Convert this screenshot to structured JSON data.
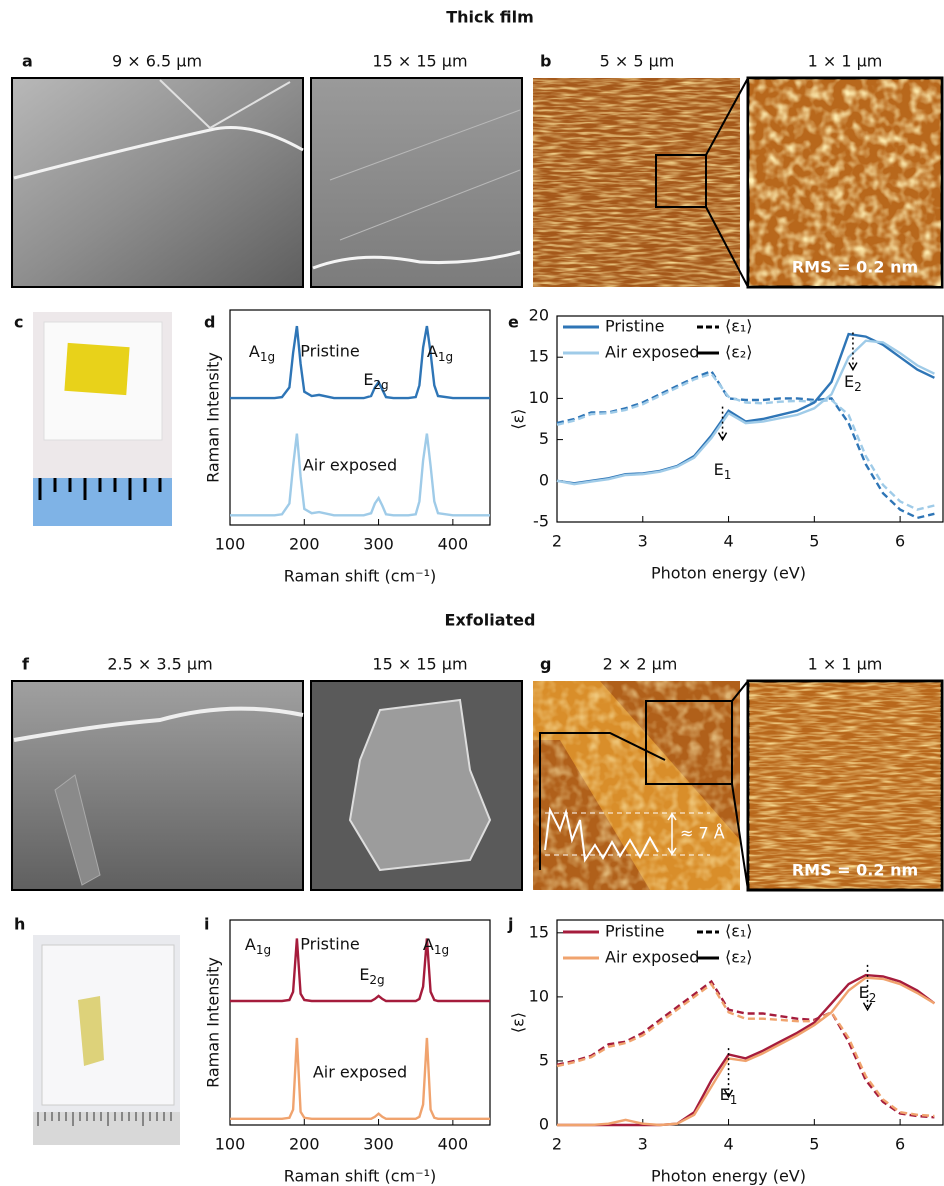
{
  "headings": [
    "Thick film",
    "Exfoliated"
  ],
  "panel_labels": [
    "a",
    "b",
    "c",
    "d",
    "e",
    "f",
    "g",
    "h",
    "i",
    "j"
  ],
  "image_labels": [
    "9 × 6.5 μm",
    "15 × 15 μm",
    "5 × 5 μm",
    "1 × 1 μm",
    "2.5 × 3.5 μm",
    "15 × 15 μm",
    "2 × 2 μm",
    "1 × 1 μm"
  ],
  "rms_labels": [
    "RMS = 0.2 nm",
    "RMS = 0.2 nm"
  ],
  "step_label": "≈ 7 Å",
  "chart_data": [
    {
      "type": "line",
      "xlabel": "Raman shift (cm⁻¹)",
      "ylabel": "Raman Intensity",
      "x": [
        100,
        120,
        140,
        160,
        170,
        180,
        185,
        190,
        195,
        200,
        210,
        220,
        240,
        260,
        280,
        290,
        295,
        300,
        305,
        310,
        320,
        340,
        350,
        355,
        360,
        365,
        370,
        375,
        380,
        400,
        420,
        440,
        450
      ],
      "xlim": [
        100,
        450
      ],
      "xticks": [
        100,
        200,
        300,
        400
      ],
      "ylim": [
        0,
        2
      ],
      "series": [
        {
          "name": "Pristine",
          "color": "#2e75b6",
          "values": [
            1.18,
            1.18,
            1.18,
            1.18,
            1.19,
            1.28,
            1.6,
            1.85,
            1.5,
            1.24,
            1.2,
            1.21,
            1.18,
            1.18,
            1.18,
            1.2,
            1.28,
            1.33,
            1.26,
            1.19,
            1.18,
            1.18,
            1.19,
            1.3,
            1.65,
            1.85,
            1.6,
            1.3,
            1.2,
            1.18,
            1.18,
            1.18,
            1.18
          ]
        },
        {
          "name": "Air exposed",
          "color": "#9fcbe8",
          "values": [
            0.09,
            0.09,
            0.09,
            0.09,
            0.1,
            0.2,
            0.55,
            0.85,
            0.45,
            0.15,
            0.11,
            0.12,
            0.09,
            0.09,
            0.09,
            0.11,
            0.2,
            0.25,
            0.18,
            0.1,
            0.09,
            0.09,
            0.1,
            0.22,
            0.6,
            0.85,
            0.55,
            0.22,
            0.11,
            0.09,
            0.09,
            0.09,
            0.09
          ]
        }
      ],
      "annotations": [
        {
          "text": "A",
          "sub": "1g"
        },
        {
          "text": "E",
          "sub": "2g"
        },
        {
          "text": "A",
          "sub": "1g"
        }
      ]
    },
    {
      "type": "ellipsometry",
      "xlabel": "Photon energy (eV)",
      "ylabel": "⟨ε⟩",
      "x": [
        2.0,
        2.2,
        2.4,
        2.6,
        2.8,
        3.0,
        3.2,
        3.4,
        3.6,
        3.8,
        4.0,
        4.2,
        4.4,
        4.6,
        4.8,
        5.0,
        5.2,
        5.4,
        5.6,
        5.8,
        6.0,
        6.2,
        6.4
      ],
      "xlim": [
        2,
        6.5
      ],
      "xticks": [
        2,
        3,
        4,
        5,
        6
      ],
      "ylim": [
        -5,
        20
      ],
      "yticks": [
        -5,
        0,
        5,
        10,
        15,
        20
      ],
      "legend": {
        "samples": [
          {
            "name": "Pristine",
            "color": "#2e75b6"
          },
          {
            "name": "Air exposed",
            "color": "#9fcbe8"
          }
        ],
        "components": [
          {
            "name": "⟨ε₁⟩",
            "dashed": true
          },
          {
            "name": "⟨ε₂⟩",
            "dashed": false
          }
        ]
      },
      "series": [
        {
          "color": "#2e75b6",
          "dashed": true,
          "values": [
            7,
            7.5,
            8.3,
            8.3,
            8.8,
            9.5,
            10.5,
            11.5,
            12.5,
            13.3,
            10,
            9.8,
            9.8,
            10,
            10,
            9.8,
            10,
            7,
            2,
            -1.5,
            -3.5,
            -4.5,
            -4
          ]
        },
        {
          "color": "#9fcbe8",
          "dashed": true,
          "values": [
            6.8,
            7.3,
            8.1,
            8.2,
            8.6,
            9.3,
            10.3,
            11.3,
            12.3,
            13,
            10.2,
            9.5,
            9.4,
            9.6,
            9.7,
            9.6,
            9.8,
            8,
            3,
            -0.5,
            -2.5,
            -3.5,
            -3
          ]
        },
        {
          "color": "#2e75b6",
          "dashed": false,
          "values": [
            0,
            -0.3,
            0,
            0.3,
            0.8,
            0.9,
            1.2,
            1.8,
            3,
            5.5,
            8.5,
            7.2,
            7.5,
            8,
            8.5,
            9.5,
            12,
            17.8,
            17.5,
            16.5,
            15,
            13.5,
            12.5
          ]
        },
        {
          "color": "#9fcbe8",
          "dashed": false,
          "values": [
            0,
            -0.4,
            -0.1,
            0.2,
            0.7,
            0.8,
            1.1,
            1.7,
            2.8,
            5.2,
            8.2,
            7,
            7.2,
            7.6,
            8,
            8.8,
            10.5,
            15,
            17,
            16.8,
            15.5,
            14,
            13
          ]
        }
      ],
      "annotations": [
        {
          "text": "E",
          "sub": "1"
        },
        {
          "text": "E",
          "sub": "2"
        }
      ]
    },
    {
      "type": "line",
      "xlabel": "Raman shift (cm⁻¹)",
      "ylabel": "Raman Intensity",
      "x": [
        100,
        120,
        140,
        160,
        170,
        180,
        185,
        190,
        195,
        200,
        210,
        220,
        240,
        260,
        280,
        290,
        295,
        300,
        305,
        310,
        320,
        340,
        350,
        355,
        360,
        365,
        370,
        375,
        380,
        400,
        420,
        440,
        450
      ],
      "xlim": [
        100,
        450
      ],
      "xticks": [
        100,
        200,
        300,
        400
      ],
      "ylim": [
        0,
        2
      ],
      "series": [
        {
          "name": "Pristine",
          "color": "#a51c3c",
          "values": [
            1.21,
            1.21,
            1.21,
            1.21,
            1.21,
            1.22,
            1.3,
            1.82,
            1.28,
            1.22,
            1.21,
            1.21,
            1.21,
            1.21,
            1.21,
            1.21,
            1.23,
            1.26,
            1.23,
            1.21,
            1.21,
            1.21,
            1.21,
            1.23,
            1.35,
            1.82,
            1.3,
            1.22,
            1.21,
            1.21,
            1.21,
            1.21,
            1.21
          ]
        },
        {
          "name": "Air exposed",
          "color": "#f0a36e",
          "values": [
            0.06,
            0.06,
            0.06,
            0.06,
            0.06,
            0.07,
            0.15,
            0.85,
            0.13,
            0.07,
            0.06,
            0.06,
            0.06,
            0.06,
            0.06,
            0.06,
            0.08,
            0.11,
            0.08,
            0.06,
            0.06,
            0.06,
            0.06,
            0.08,
            0.2,
            0.85,
            0.15,
            0.07,
            0.06,
            0.06,
            0.06,
            0.06,
            0.06
          ]
        }
      ],
      "annotations": [
        {
          "text": "A",
          "sub": "1g"
        },
        {
          "text": "E",
          "sub": "2g"
        },
        {
          "text": "A",
          "sub": "1g"
        }
      ]
    },
    {
      "type": "ellipsometry",
      "xlabel": "Photon energy (eV)",
      "ylabel": "⟨ε⟩",
      "x": [
        2.0,
        2.2,
        2.4,
        2.6,
        2.8,
        3.0,
        3.2,
        3.4,
        3.6,
        3.8,
        4.0,
        4.2,
        4.4,
        4.6,
        4.8,
        5.0,
        5.2,
        5.4,
        5.6,
        5.8,
        6.0,
        6.2,
        6.4
      ],
      "xlim": [
        2,
        6.5
      ],
      "xticks": [
        2,
        3,
        4,
        5,
        6
      ],
      "ylim": [
        0,
        16
      ],
      "yticks": [
        0,
        5,
        10,
        15
      ],
      "legend": {
        "samples": [
          {
            "name": "Pristine",
            "color": "#a51c3c"
          },
          {
            "name": "Air exposed",
            "color": "#f0a36e"
          }
        ],
        "components": [
          {
            "name": "⟨ε₁⟩",
            "dashed": true
          },
          {
            "name": "⟨ε₂⟩",
            "dashed": false
          }
        ]
      },
      "series": [
        {
          "color": "#a51c3c",
          "dashed": true,
          "values": [
            4.7,
            5,
            5.4,
            6.3,
            6.5,
            7.2,
            8.2,
            9.2,
            10.2,
            11.2,
            9,
            8.7,
            8.7,
            8.5,
            8.3,
            8.2,
            8.8,
            6.5,
            3.5,
            1.8,
            0.9,
            0.7,
            0.6
          ]
        },
        {
          "color": "#f0a36e",
          "dashed": true,
          "values": [
            4.6,
            4.9,
            5.3,
            6.1,
            6.4,
            7,
            8,
            9,
            10,
            11,
            8.8,
            8.3,
            8.3,
            8.2,
            8.1,
            8.1,
            8.8,
            6.8,
            3.8,
            2,
            1,
            0.8,
            0.7
          ]
        },
        {
          "color": "#a51c3c",
          "dashed": false,
          "values": [
            0,
            0,
            0,
            0,
            0,
            0,
            0,
            0.1,
            1,
            3.5,
            5.5,
            5.2,
            5.8,
            6.5,
            7.2,
            8,
            9.5,
            11,
            11.7,
            11.6,
            11.2,
            10.5,
            9.5
          ]
        },
        {
          "color": "#f0a36e",
          "dashed": false,
          "values": [
            0,
            0,
            0,
            0.1,
            0.4,
            0.1,
            0,
            0.1,
            0.8,
            3,
            5.2,
            5,
            5.6,
            6.3,
            7,
            7.8,
            8.8,
            10.5,
            11.5,
            11.4,
            11,
            10.3,
            9.5
          ]
        }
      ],
      "annotations": [
        {
          "text": "E",
          "sub": "1"
        },
        {
          "text": "E",
          "sub": "2"
        }
      ]
    }
  ]
}
